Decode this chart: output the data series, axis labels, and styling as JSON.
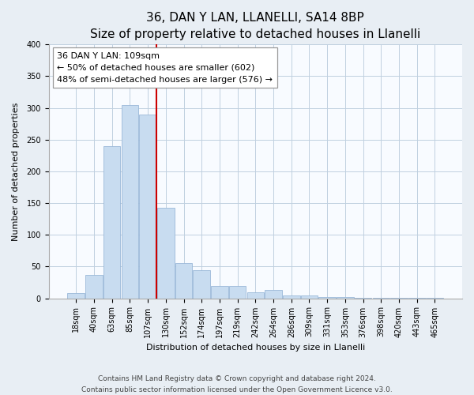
{
  "title": "36, DAN Y LAN, LLANELLI, SA14 8BP",
  "subtitle": "Size of property relative to detached houses in Llanelli",
  "xlabel": "Distribution of detached houses by size in Llanelli",
  "ylabel": "Number of detached properties",
  "bar_color": "#c8dcf0",
  "bar_edge_color": "#9ab8d8",
  "categories": [
    "18sqm",
    "40sqm",
    "63sqm",
    "85sqm",
    "107sqm",
    "130sqm",
    "152sqm",
    "174sqm",
    "197sqm",
    "219sqm",
    "242sqm",
    "264sqm",
    "286sqm",
    "309sqm",
    "331sqm",
    "353sqm",
    "376sqm",
    "398sqm",
    "420sqm",
    "443sqm",
    "465sqm"
  ],
  "values": [
    8,
    37,
    240,
    305,
    290,
    143,
    55,
    44,
    20,
    20,
    9,
    13,
    5,
    5,
    2,
    2,
    1,
    1,
    1,
    1,
    1
  ],
  "ylim": [
    0,
    400
  ],
  "yticks": [
    0,
    50,
    100,
    150,
    200,
    250,
    300,
    350,
    400
  ],
  "property_line_x": 4.0,
  "property_line_label": "36 DAN Y LAN: 109sqm",
  "annotation_line1": "← 50% of detached houses are smaller (602)",
  "annotation_line2": "48% of semi-detached houses are larger (576) →",
  "footer1": "Contains HM Land Registry data © Crown copyright and database right 2024.",
  "footer2": "Contains public sector information licensed under the Open Government Licence v3.0.",
  "background_color": "#e8eef4",
  "plot_bg_color": "#f8fbff",
  "grid_color": "#c0d0e0",
  "red_line_color": "#cc0000",
  "title_fontsize": 11,
  "subtitle_fontsize": 9,
  "axis_label_fontsize": 8,
  "tick_fontsize": 7,
  "annotation_fontsize": 8,
  "footer_fontsize": 6.5
}
